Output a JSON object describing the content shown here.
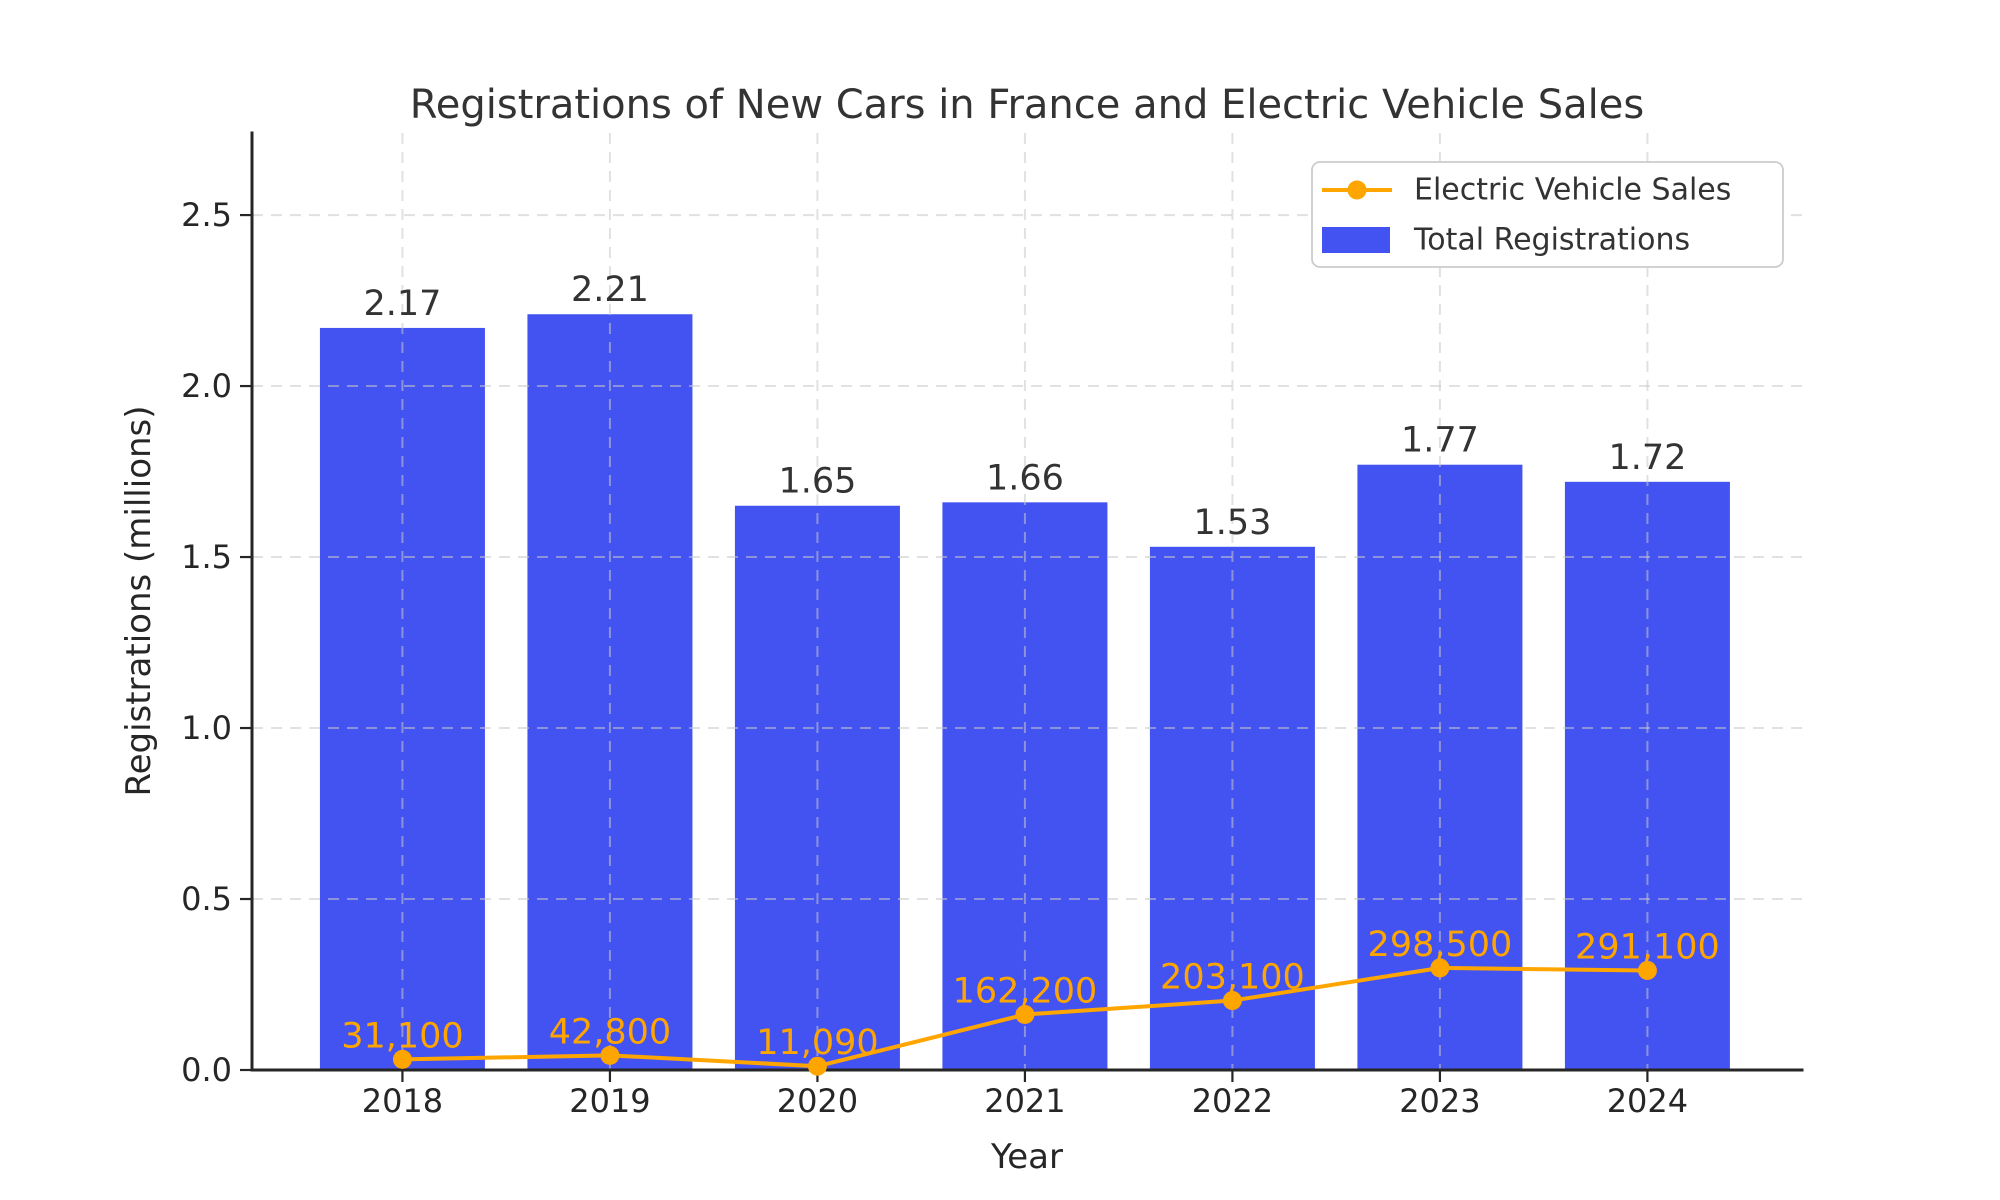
{
  "chart_data": {
    "type": "bar+line",
    "title": "Registrations of New Cars in France and Electric Vehicle Sales",
    "xlabel": "Year",
    "ylabel": "Registrations (millions)",
    "categories": [
      "2018",
      "2019",
      "2020",
      "2021",
      "2022",
      "2023",
      "2024"
    ],
    "series": [
      {
        "name": "Electric Vehicle Sales",
        "type": "line",
        "color": "#FFA500",
        "values": [
          31100,
          42800,
          11090,
          162200,
          203100,
          298500,
          291100
        ],
        "values_millions": [
          0.0311,
          0.0428,
          0.01109,
          0.1622,
          0.2031,
          0.2985,
          0.2911
        ],
        "point_labels": [
          "31,100",
          "42,800",
          "11,090",
          "162,200",
          "203,100",
          "298,500",
          "291,100"
        ]
      },
      {
        "name": "Total Registrations",
        "type": "bar",
        "color": "#4353F1",
        "values_millions": [
          2.17,
          2.21,
          1.65,
          1.66,
          1.53,
          1.77,
          1.72
        ],
        "bar_labels": [
          "2.17",
          "2.21",
          "1.65",
          "1.66",
          "1.53",
          "1.77",
          "1.72"
        ]
      }
    ],
    "yticks": [
      "0.0",
      "0.5",
      "1.0",
      "1.5",
      "2.0",
      "2.5"
    ],
    "ylim": [
      0,
      2.74
    ],
    "grid": {
      "style": "dashed",
      "color": "#d9d9d9",
      "drawn_over_bars": true
    },
    "legend": {
      "position": "upper right",
      "entries": [
        "Electric Vehicle Sales",
        "Total Registrations"
      ]
    }
  }
}
